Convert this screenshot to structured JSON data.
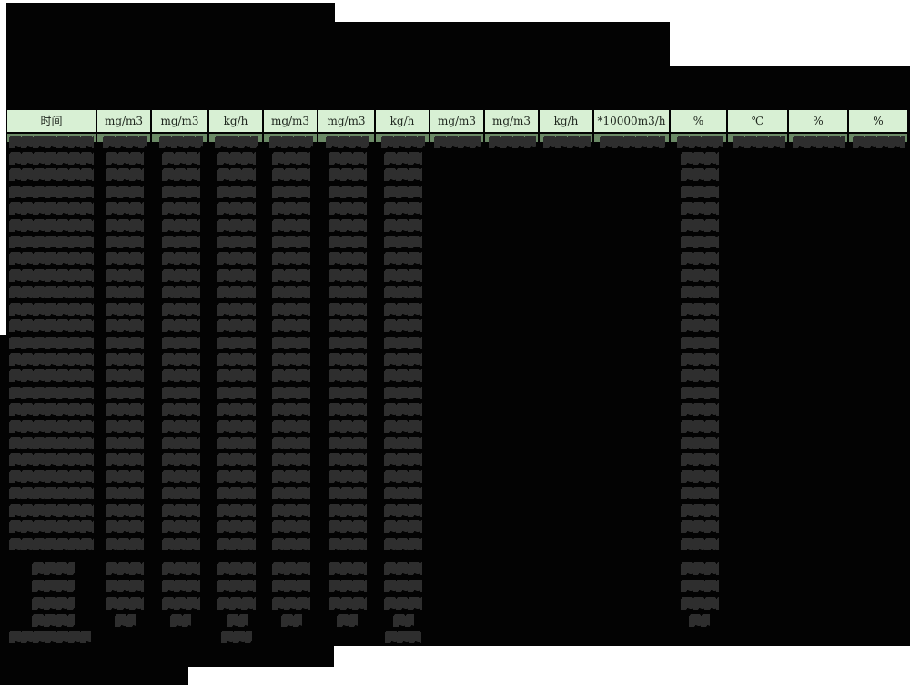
{
  "report": {
    "unit_header": {
      "columns": [
        {
          "unit": "时间"
        },
        {
          "unit": "mg/m3"
        },
        {
          "unit": "mg/m3"
        },
        {
          "unit": "kg/h"
        },
        {
          "unit": "mg/m3"
        },
        {
          "unit": "mg/m3"
        },
        {
          "unit": "kg/h"
        },
        {
          "unit": "mg/m3"
        },
        {
          "unit": "mg/m3"
        },
        {
          "unit": "kg/h"
        },
        {
          "unit": "*10000m3/h"
        },
        {
          "unit": "%"
        },
        {
          "unit": "℃"
        },
        {
          "unit": "%"
        },
        {
          "unit": "%"
        }
      ]
    },
    "redaction": {
      "title_blocks_redacted": 3,
      "data_row_count": 25,
      "first_row_columns": [
        0,
        1,
        2,
        3,
        4,
        5,
        6,
        7,
        8,
        9,
        10,
        11,
        12,
        13,
        14
      ],
      "regular_row_columns": [
        0,
        1,
        2,
        3,
        4,
        5,
        6,
        11
      ],
      "summary_rows": [
        {
          "kind": "stat",
          "columns": [
            0,
            1,
            2,
            3,
            4,
            5,
            6,
            11
          ]
        },
        {
          "kind": "stat",
          "columns": [
            0,
            1,
            2,
            3,
            4,
            5,
            6,
            11
          ]
        },
        {
          "kind": "stat",
          "columns": [
            0,
            1,
            2,
            3,
            4,
            5,
            6,
            11
          ]
        },
        {
          "kind": "stat-small",
          "columns": [
            0,
            1,
            2,
            3,
            4,
            5,
            6,
            11
          ]
        },
        {
          "kind": "footer",
          "columns": [
            0,
            3,
            6
          ]
        }
      ]
    },
    "colors": {
      "page_bg": "#ffffff",
      "body_bg": "#030303",
      "header_bg": "#d8f0d4",
      "subheader_bg": "#6b8a66",
      "redaction_fill": "#2e2e2e"
    }
  }
}
